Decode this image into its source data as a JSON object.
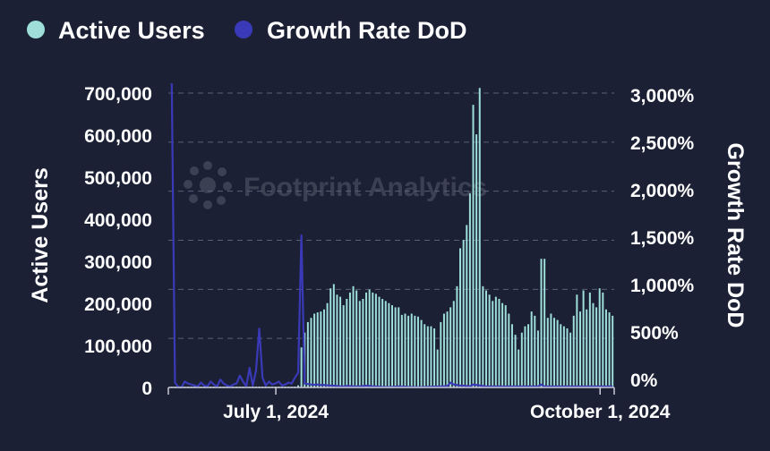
{
  "colors": {
    "background": "#1b2035",
    "active_users": "#9ee0d9",
    "growth_rate": "#3a3ab8",
    "text": "#ffffff",
    "grid": "#5a6078",
    "watermark": "#ffffff"
  },
  "watermark": {
    "text": "Footprint Analytics"
  },
  "chart_data": {
    "type": "bar",
    "legend_position": "top-left",
    "grid": "horizontal-dashed",
    "x_start": "2024-06-01",
    "x_end": "2024-10-05",
    "x_ticks": [
      {
        "date": "2024-07-01",
        "label": "July 1, 2024"
      },
      {
        "date": "2024-10-01",
        "label": "October 1, 2024"
      }
    ],
    "y_left": {
      "label": "Active Users",
      "range": [
        0,
        700000
      ],
      "ticks": [
        0,
        100000,
        200000,
        300000,
        400000,
        500000,
        600000,
        700000
      ],
      "tick_labels": [
        "0",
        "100,000",
        "200,000",
        "300,000",
        "400,000",
        "500,000",
        "600,000",
        "700,000"
      ]
    },
    "y_right": {
      "label": "Growth Rate DoD",
      "range": [
        0,
        3000
      ],
      "unit": "%",
      "ticks": [
        0,
        500,
        1000,
        1500,
        2000,
        2500,
        3000
      ],
      "tick_labels": [
        "0%",
        "500%",
        "1,000%",
        "1,500%",
        "2,000%",
        "2,500%",
        "3,000%"
      ]
    },
    "series": [
      {
        "name": "Active Users",
        "type": "bar",
        "axis": "left",
        "values": [
          2000,
          2000,
          2000,
          2000,
          2000,
          2000,
          2000,
          2000,
          2000,
          2000,
          2000,
          2000,
          2000,
          2000,
          2000,
          2000,
          2000,
          2000,
          2000,
          2000,
          2000,
          2000,
          2000,
          2000,
          2000,
          2000,
          2000,
          2000,
          2000,
          2000,
          2000,
          2000,
          2000,
          2000,
          2000,
          2000,
          2000,
          2000,
          2000,
          5000,
          95000,
          130000,
          155000,
          165000,
          175000,
          178000,
          180000,
          185000,
          200000,
          235000,
          245000,
          220000,
          215000,
          195000,
          210000,
          225000,
          240000,
          230000,
          205000,
          210000,
          225000,
          232000,
          225000,
          222000,
          215000,
          210000,
          205000,
          200000,
          195000,
          190000,
          190000,
          172000,
          175000,
          170000,
          175000,
          170000,
          168000,
          160000,
          150000,
          145000,
          145000,
          140000,
          90000,
          155000,
          175000,
          180000,
          190000,
          205000,
          240000,
          330000,
          350000,
          385000,
          460000,
          670000,
          600000,
          710000,
          240000,
          230000,
          220000,
          205000,
          215000,
          210000,
          200000,
          195000,
          175000,
          150000,
          125000,
          90000,
          130000,
          145000,
          150000,
          180000,
          170000,
          135000,
          305000,
          305000,
          165000,
          175000,
          165000,
          160000,
          150000,
          145000,
          140000,
          130000,
          170000,
          220000,
          180000,
          230000,
          185000,
          225000,
          200000,
          190000,
          235000,
          225000,
          185000,
          178000,
          170000
        ]
      },
      {
        "name": "Growth Rate DoD",
        "type": "line",
        "axis": "right",
        "values": [
          3100,
          50,
          5,
          0,
          60,
          40,
          30,
          20,
          10,
          50,
          20,
          10,
          60,
          30,
          10,
          80,
          40,
          20,
          10,
          30,
          40,
          120,
          60,
          10,
          200,
          20,
          170,
          600,
          100,
          20,
          60,
          30,
          40,
          60,
          20,
          30,
          50,
          40,
          100,
          150,
          1550,
          40,
          35,
          30,
          28,
          30,
          25,
          25,
          22,
          20,
          18,
          15,
          12,
          10,
          15,
          14,
          12,
          10,
          12,
          15,
          18,
          15,
          12,
          10,
          8,
          6,
          5,
          4,
          6,
          8,
          10,
          9,
          8,
          6,
          5,
          4,
          3,
          4,
          5,
          6,
          7,
          8,
          9,
          10,
          12,
          14,
          50,
          30,
          25,
          20,
          18,
          15,
          12,
          30,
          25,
          20,
          15,
          10,
          10,
          10,
          10,
          10,
          10,
          10,
          10,
          10,
          10,
          10,
          10,
          10,
          10,
          10,
          10,
          10,
          30,
          10,
          10,
          10,
          10,
          10,
          10,
          10,
          10,
          10,
          10,
          10,
          10,
          10,
          10,
          10,
          10,
          10,
          10,
          10,
          10,
          10,
          10
        ]
      }
    ]
  }
}
